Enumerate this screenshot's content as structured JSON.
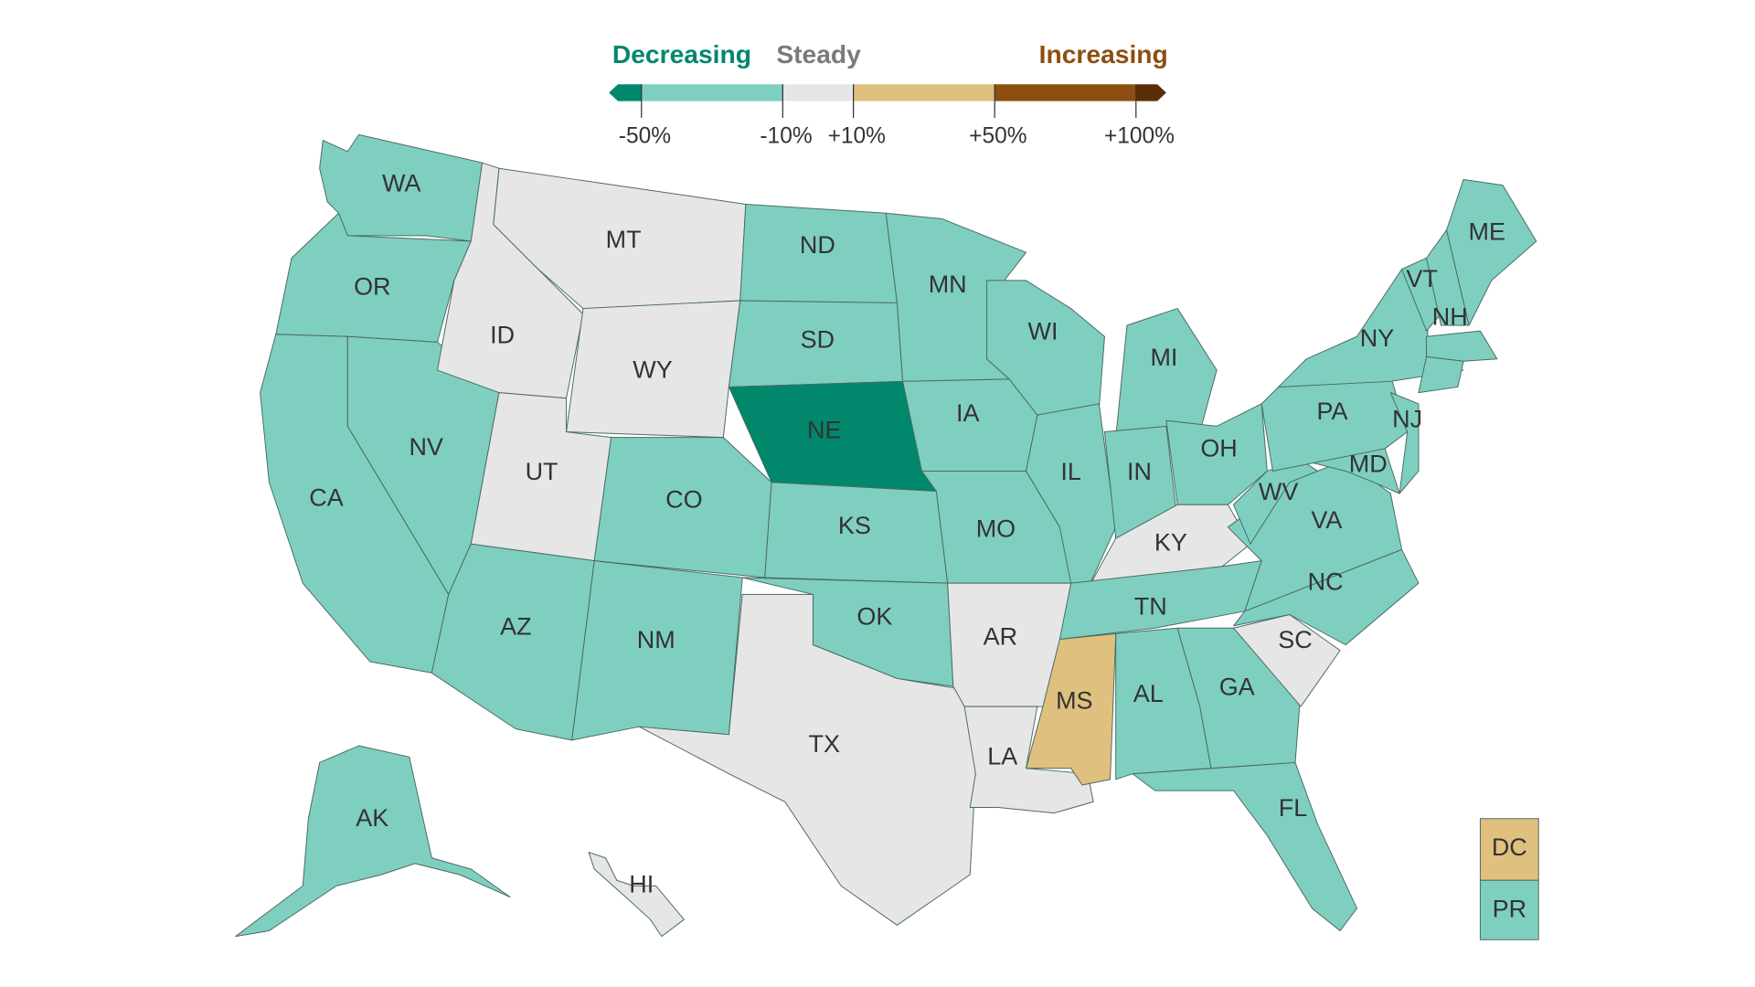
{
  "legend": {
    "decreasing": "Decreasing",
    "steady": "Steady",
    "increasing": "Increasing",
    "decreasing_color": "#00876c",
    "steady_color": "#7a7a7a",
    "increasing_color": "#8c4f10",
    "colors": [
      "#00876c",
      "#7fcfc0",
      "#e6e6e6",
      "#dfc07f",
      "#8c4f10",
      "#5c2e08"
    ],
    "ticks": [
      "-50%",
      "-10%",
      "+10%",
      "+50%",
      "+100%"
    ]
  },
  "states": [
    {
      "label": "WA",
      "color": "#7fcfc0"
    },
    {
      "label": "OR",
      "color": "#7fcfc0"
    },
    {
      "label": "CA",
      "color": "#7fcfc0"
    },
    {
      "label": "NV",
      "color": "#7fcfc0"
    },
    {
      "label": "ID",
      "color": "#e6e6e6"
    },
    {
      "label": "MT",
      "color": "#e6e6e6"
    },
    {
      "label": "WY",
      "color": "#e6e6e6"
    },
    {
      "label": "UT",
      "color": "#e6e6e6"
    },
    {
      "label": "CO",
      "color": "#7fcfc0"
    },
    {
      "label": "AZ",
      "color": "#7fcfc0"
    },
    {
      "label": "NM",
      "color": "#7fcfc0"
    },
    {
      "label": "ND",
      "color": "#7fcfc0"
    },
    {
      "label": "SD",
      "color": "#7fcfc0"
    },
    {
      "label": "NE",
      "color": "#00876c"
    },
    {
      "label": "KS",
      "color": "#7fcfc0"
    },
    {
      "label": "OK",
      "color": "#7fcfc0"
    },
    {
      "label": "TX",
      "color": "#e6e6e6"
    },
    {
      "label": "MN",
      "color": "#7fcfc0"
    },
    {
      "label": "IA",
      "color": "#7fcfc0"
    },
    {
      "label": "MO",
      "color": "#7fcfc0"
    },
    {
      "label": "AR",
      "color": "#e6e6e6"
    },
    {
      "label": "LA",
      "color": "#e6e6e6"
    },
    {
      "label": "WI",
      "color": "#7fcfc0"
    },
    {
      "label": "IL",
      "color": "#7fcfc0"
    },
    {
      "label": "MI",
      "color": "#7fcfc0"
    },
    {
      "label": "IN",
      "color": "#7fcfc0"
    },
    {
      "label": "OH",
      "color": "#7fcfc0"
    },
    {
      "label": "KY",
      "color": "#e6e6e6"
    },
    {
      "label": "TN",
      "color": "#7fcfc0"
    },
    {
      "label": "MS",
      "color": "#dfc07f"
    },
    {
      "label": "AL",
      "color": "#7fcfc0"
    },
    {
      "label": "GA",
      "color": "#7fcfc0"
    },
    {
      "label": "FL",
      "color": "#7fcfc0"
    },
    {
      "label": "SC",
      "color": "#e6e6e6"
    },
    {
      "label": "NC",
      "color": "#7fcfc0"
    },
    {
      "label": "VA",
      "color": "#7fcfc0"
    },
    {
      "label": "WV",
      "color": "#7fcfc0"
    },
    {
      "label": "MD",
      "color": "#7fcfc0"
    },
    {
      "label": "PA",
      "color": "#7fcfc0"
    },
    {
      "label": "NJ",
      "color": "#7fcfc0"
    },
    {
      "label": "NY",
      "color": "#7fcfc0"
    },
    {
      "label": "VT",
      "color": "#7fcfc0"
    },
    {
      "label": "NH",
      "color": "#7fcfc0"
    },
    {
      "label": "ME",
      "color": "#7fcfc0"
    },
    {
      "label": null,
      "color": "#7fcfc0"
    },
    {
      "label": null,
      "color": "#7fcfc0"
    },
    {
      "label": "AK",
      "color": "#7fcfc0"
    },
    {
      "label": "HI",
      "color": "#e6e6e6"
    },
    {
      "label": "DC",
      "color": "#dfc07f"
    },
    {
      "label": "PR",
      "color": "#7fcfc0"
    }
  ]
}
